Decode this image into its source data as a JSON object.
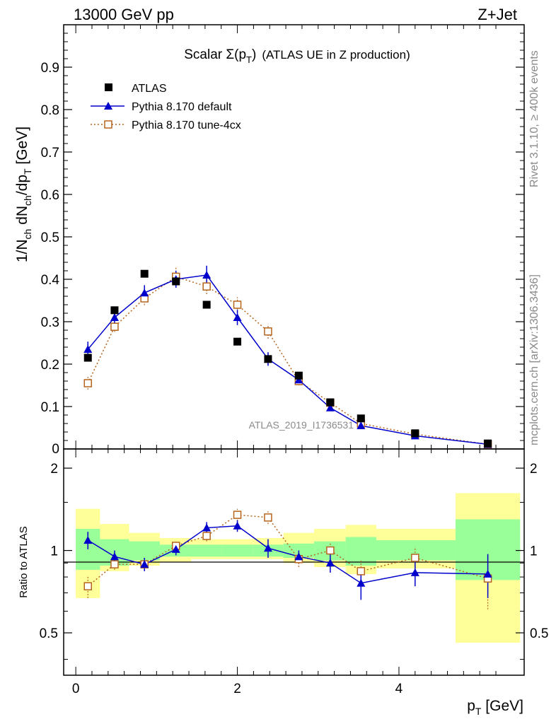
{
  "header": {
    "left_label": "13000 GeV pp",
    "right_label": "Z+Jet"
  },
  "side_labels": {
    "rivet": "Rivet 3.1.10, ≥ 400k events",
    "mcplots": "mcplots.cern.ch [arXiv:1306.3436]"
  },
  "colors": {
    "atlas": "#000000",
    "default": "#0000cc",
    "tune4cx": "#b5651d",
    "band_green": "#99ff99",
    "band_yellow": "#ffff99",
    "watermark": "#8a8a8a"
  },
  "chart_data": [
    {
      "type": "scatter",
      "name": "main",
      "title_prefix": "Scalar ",
      "title_sigma": "Σ(p",
      "title_sub": "T",
      "title_close": ")",
      "title_suffix": "(ATLAS UE in Z production)",
      "ylabel": "1/N_ch dN_ch/dp_T [GeV]",
      "ylabel_parts": [
        "1/N",
        "ch",
        " dN",
        "ch",
        "/dp",
        "T",
        " [GeV]"
      ],
      "ylim": [
        0,
        1.0
      ],
      "xlim": [
        -0.15,
        5.55
      ],
      "yticks": [
        0.1,
        0.2,
        0.3,
        0.4,
        0.5,
        0.6,
        0.7,
        0.8,
        0.9
      ],
      "ytick_labels": [
        "0.1",
        "0.2",
        "0.3",
        "0.4",
        "0.5",
        "0.6",
        "0.7",
        "0.8",
        "0.9"
      ],
      "y_zero_label": "0",
      "watermark": "ATLAS_2019_I1736531",
      "legend": [
        {
          "label": "ATLAS",
          "marker": "square-filled"
        },
        {
          "label": "Pythia 8.170 default",
          "marker": "triangle-filled"
        },
        {
          "label": "Pythia 8.170 tune-4cx",
          "marker": "square-open"
        }
      ],
      "x": [
        0.15,
        0.48,
        0.85,
        1.24,
        1.62,
        2.0,
        2.38,
        2.76,
        3.15,
        3.53,
        4.2,
        5.1
      ],
      "series": [
        {
          "name": "ATLAS",
          "values": [
            0.215,
            0.327,
            0.413,
            0.395,
            0.34,
            0.253,
            0.212,
            0.173,
            0.11,
            0.072,
            0.037,
            0.013
          ]
        },
        {
          "name": "Pythia 8.170 default",
          "values": [
            0.235,
            0.31,
            0.368,
            0.4,
            0.41,
            0.31,
            0.212,
            0.163,
            0.097,
            0.055,
            0.031,
            0.011
          ],
          "errors": [
            0.018,
            0.014,
            0.018,
            0.02,
            0.022,
            0.018,
            0.016,
            0.008,
            0.007,
            0.006,
            0.004,
            0.002
          ]
        },
        {
          "name": "Pythia 8.170 tune-4cx",
          "values": [
            0.155,
            0.288,
            0.355,
            0.406,
            0.383,
            0.34,
            0.277,
            0.16,
            0.109,
            0.06,
            0.035,
            0.011
          ],
          "errors": [
            0.015,
            0.012,
            0.016,
            0.022,
            0.018,
            0.018,
            0.017,
            0.01,
            0.008,
            0.006,
            0.004,
            0.002
          ]
        }
      ]
    },
    {
      "type": "scatter",
      "name": "ratio",
      "ylabel": "Ratio to ATLAS",
      "xlabel_parts": [
        "p",
        "T",
        " [GeV]"
      ],
      "xlim": [
        -0.15,
        5.55
      ],
      "ylim": [
        0.35,
        2.35
      ],
      "log_y": true,
      "yticks": [
        0.5,
        1,
        2
      ],
      "ytick_labels": [
        "0.5",
        "1",
        "2"
      ],
      "xticks": [
        0,
        2,
        4
      ],
      "xtick_labels": [
        "0",
        "2",
        "4"
      ],
      "bins": [
        [
          0,
          0.3
        ],
        [
          0.3,
          0.66
        ],
        [
          0.66,
          1.04
        ],
        [
          1.04,
          1.43
        ],
        [
          1.43,
          1.81
        ],
        [
          1.81,
          2.19
        ],
        [
          2.19,
          2.57
        ],
        [
          2.57,
          2.95
        ],
        [
          2.95,
          3.34
        ],
        [
          3.34,
          3.72
        ],
        [
          3.72,
          4.7
        ],
        [
          4.7,
          5.5
        ]
      ],
      "band_inner": [
        [
          0.85,
          1.2
        ],
        [
          0.88,
          1.1
        ],
        [
          0.92,
          1.08
        ],
        [
          0.95,
          1.05
        ],
        [
          0.95,
          1.05
        ],
        [
          0.95,
          1.05
        ],
        [
          0.95,
          1.05
        ],
        [
          0.94,
          1.06
        ],
        [
          0.92,
          1.08
        ],
        [
          0.88,
          1.12
        ],
        [
          0.92,
          1.09
        ],
        [
          0.78,
          1.3
        ]
      ],
      "band_outer": [
        [
          0.67,
          1.42
        ],
        [
          0.84,
          1.25
        ],
        [
          0.88,
          1.16
        ],
        [
          0.91,
          1.11
        ],
        [
          0.93,
          1.1
        ],
        [
          0.93,
          1.1
        ],
        [
          0.93,
          1.11
        ],
        [
          0.9,
          1.16
        ],
        [
          0.87,
          1.2
        ],
        [
          0.82,
          1.24
        ],
        [
          0.86,
          1.2
        ],
        [
          0.46,
          1.62
        ]
      ],
      "x": [
        0.15,
        0.48,
        0.85,
        1.24,
        1.62,
        2.0,
        2.38,
        2.76,
        3.15,
        3.53,
        4.2,
        5.1
      ],
      "series": [
        {
          "name": "Pythia 8.170 default",
          "values": [
            1.09,
            0.95,
            0.89,
            1.01,
            1.21,
            1.23,
            1.02,
            0.95,
            0.9,
            0.76,
            0.83,
            0.82
          ],
          "errors": [
            0.08,
            0.05,
            0.05,
            0.05,
            0.06,
            0.06,
            0.08,
            0.05,
            0.07,
            0.1,
            0.09,
            0.15
          ]
        },
        {
          "name": "Pythia 8.170 tune-4cx",
          "values": [
            0.74,
            0.89,
            0.89,
            1.04,
            1.13,
            1.35,
            1.32,
            0.93,
            1.0,
            0.84,
            0.94,
            0.79
          ],
          "errors": [
            0.07,
            0.04,
            0.04,
            0.05,
            0.05,
            0.07,
            0.07,
            0.06,
            0.07,
            0.09,
            0.09,
            0.18
          ]
        }
      ]
    }
  ]
}
